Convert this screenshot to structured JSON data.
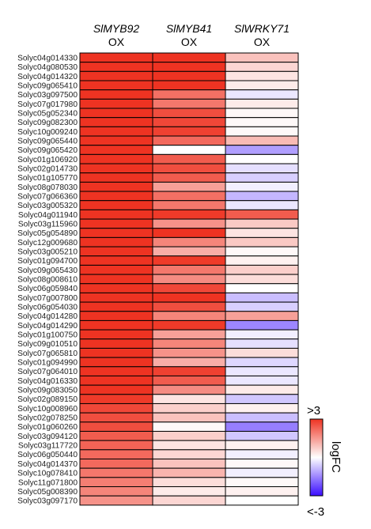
{
  "chart_data": {
    "type": "heatmap",
    "columns": [
      {
        "gene": "SlMYB92",
        "suffix": "OX"
      },
      {
        "gene": "SlMYB41",
        "suffix": "OX"
      },
      {
        "gene": "SlWRKY71",
        "suffix": "OX"
      }
    ],
    "rows": [
      "Solyc04g014330",
      "Solyc04g080530",
      "Solyc04g014320",
      "Solyc09g065410",
      "Solyc03g097500",
      "Solyc07g017980",
      "Solyc05g052340",
      "Solyc09g082300",
      "Solyc10g009240",
      "Solyc09g065440",
      "Solyc09g065420",
      "Solyc01g106920",
      "Solyc02g014730",
      "Solyc01g105770",
      "Solyc08g078030",
      "Solyc07g066360",
      "Solyc03g005320",
      "Solyc04g011940",
      "Solyc03g115960",
      "Solyc05g054890",
      "Solyc12g009680",
      "Solyc03g005210",
      "Solyc01g094700",
      "Solyc09g065430",
      "Solyc08g008610",
      "Solyc06g059840",
      "Solyc07g007800",
      "Solyc06g054030",
      "Solyc04g014280",
      "Solyc04g014290",
      "Solyc01g100750",
      "Solyc09g010510",
      "Solyc07g065810",
      "Solyc01g094990",
      "Solyc07g064010",
      "Solyc04g016330",
      "Solyc09g083050",
      "Solyc02g089150",
      "Solyc10g008960",
      "Solyc02g078250",
      "Solyc01g060260",
      "Solyc03g094120",
      "Solyc03g117720",
      "Solyc06g050440",
      "Solyc04g014370",
      "Solyc10g078410",
      "Solyc11g071800",
      "Solyc05g008390",
      "Solyc03g097170"
    ],
    "values": [
      [
        3.0,
        3.0,
        0.9
      ],
      [
        3.0,
        3.0,
        0.6
      ],
      [
        3.0,
        3.0,
        0.4
      ],
      [
        3.0,
        3.0,
        0.3
      ],
      [
        3.0,
        2.1,
        -0.3
      ],
      [
        3.0,
        2.0,
        0.3
      ],
      [
        3.0,
        2.6,
        0.1
      ],
      [
        3.0,
        2.7,
        0.1
      ],
      [
        3.0,
        2.8,
        0.1
      ],
      [
        3.0,
        2.2,
        1.0
      ],
      [
        3.0,
        0.0,
        -1.2
      ],
      [
        3.0,
        2.4,
        0.0
      ],
      [
        3.0,
        2.6,
        -0.4
      ],
      [
        3.0,
        2.4,
        -0.6
      ],
      [
        3.0,
        1.4,
        -0.2
      ],
      [
        3.0,
        2.1,
        -0.9
      ],
      [
        3.0,
        2.0,
        -0.3
      ],
      [
        3.0,
        2.9,
        2.4
      ],
      [
        3.0,
        1.6,
        0.8
      ],
      [
        3.0,
        3.0,
        0.4
      ],
      [
        3.0,
        1.8,
        0.8
      ],
      [
        3.0,
        1.2,
        0.1
      ],
      [
        3.0,
        2.9,
        0.2
      ],
      [
        3.0,
        2.0,
        0.7
      ],
      [
        3.0,
        1.7,
        0.5
      ],
      [
        3.0,
        2.7,
        0.0
      ],
      [
        3.0,
        3.0,
        -0.8
      ],
      [
        3.0,
        2.6,
        -0.6
      ],
      [
        3.0,
        1.8,
        1.4
      ],
      [
        3.0,
        2.9,
        -1.5
      ],
      [
        3.0,
        1.4,
        -0.2
      ],
      [
        3.0,
        1.8,
        -0.4
      ],
      [
        3.0,
        1.6,
        0.5
      ],
      [
        3.0,
        1.2,
        -0.5
      ],
      [
        3.0,
        2.8,
        -0.3
      ],
      [
        3.0,
        2.4,
        -0.3
      ],
      [
        3.0,
        1.7,
        0.3
      ],
      [
        2.9,
        0.4,
        -0.7
      ],
      [
        2.7,
        0.7,
        0.2
      ],
      [
        2.6,
        0.9,
        -0.8
      ],
      [
        2.6,
        0.1,
        -1.6
      ],
      [
        2.4,
        0.7,
        -0.7
      ],
      [
        2.3,
        0.4,
        0.2
      ],
      [
        2.2,
        0.6,
        -0.2
      ],
      [
        2.2,
        0.9,
        0.1
      ],
      [
        2.0,
        1.1,
        -0.2
      ],
      [
        1.9,
        0.5,
        0.1
      ],
      [
        1.8,
        0.3,
        0.2
      ],
      [
        1.6,
        0.6,
        0.0
      ]
    ],
    "color_scale": {
      "low": "#3a0dff",
      "mid": "#ffffff",
      "high": "#ee3322",
      "min": -3,
      "max": 3
    },
    "legend": {
      "max_label": ">3",
      "min_label": "<-3",
      "title": "logFC",
      "placement": "bottom-right"
    }
  }
}
